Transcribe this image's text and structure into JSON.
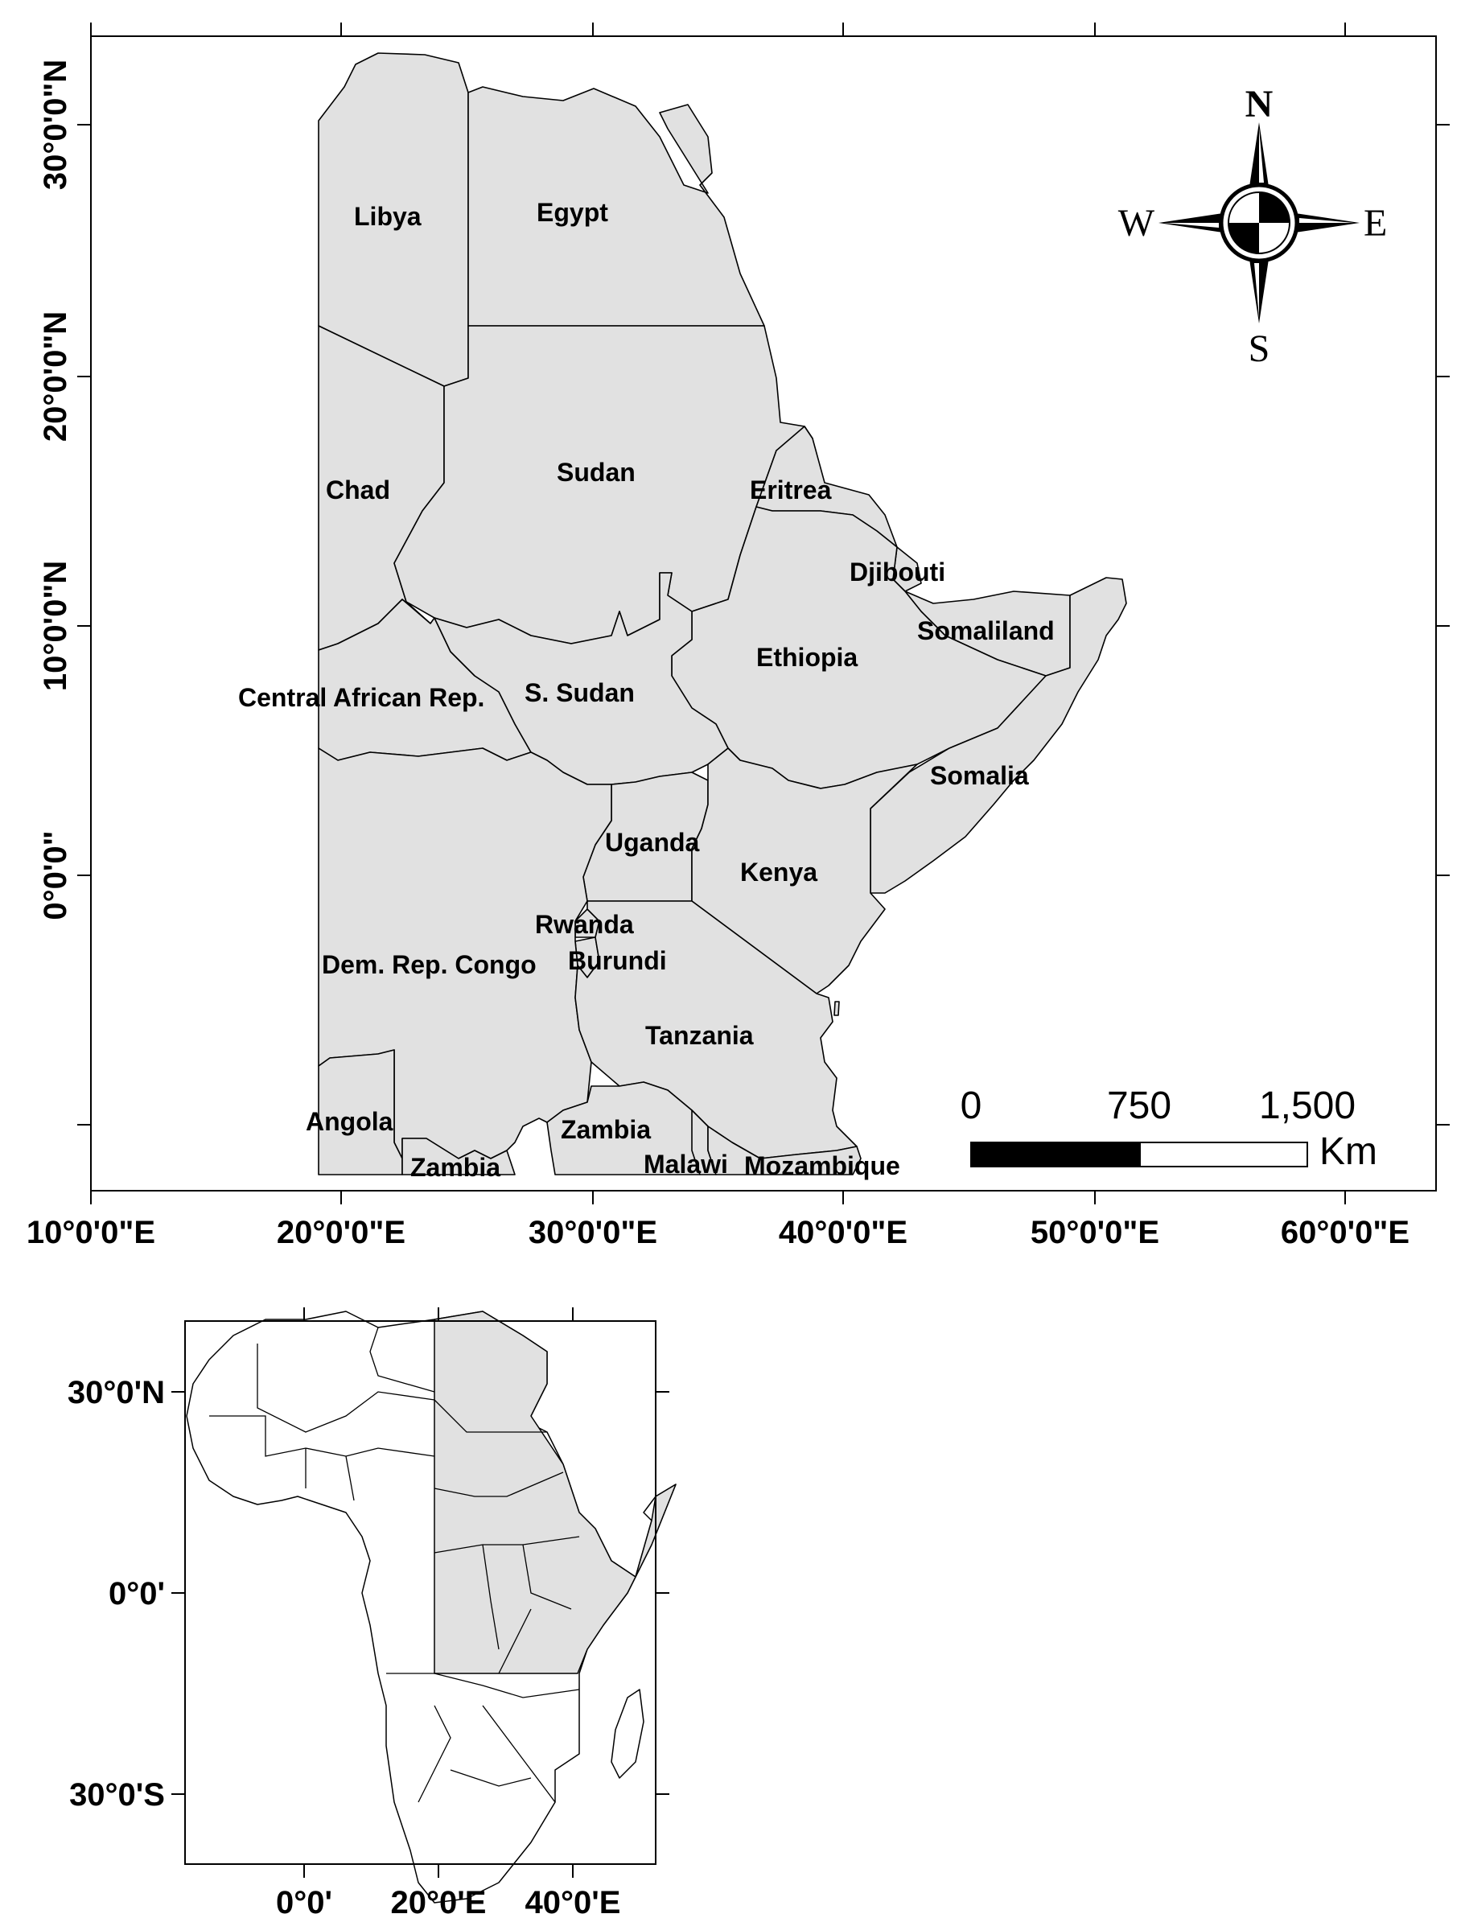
{
  "main_map": {
    "countries": [
      {
        "id": "libya",
        "label": "Libya"
      },
      {
        "id": "egypt",
        "label": "Egypt"
      },
      {
        "id": "chad",
        "label": "Chad"
      },
      {
        "id": "sudan",
        "label": "Sudan"
      },
      {
        "id": "eritrea",
        "label": "Eritrea"
      },
      {
        "id": "djibouti",
        "label": "Djibouti"
      },
      {
        "id": "somaliland",
        "label": "Somaliland"
      },
      {
        "id": "ethiopia",
        "label": "Ethiopia"
      },
      {
        "id": "central-african-rep",
        "label": "Central African Rep."
      },
      {
        "id": "s-sudan",
        "label": "S. Sudan"
      },
      {
        "id": "somalia",
        "label": "Somalia"
      },
      {
        "id": "uganda",
        "label": "Uganda"
      },
      {
        "id": "kenya",
        "label": "Kenya"
      },
      {
        "id": "rwanda",
        "label": "Rwanda"
      },
      {
        "id": "dem-rep-congo",
        "label": "Dem. Rep. Congo"
      },
      {
        "id": "burundi",
        "label": "Burundi"
      },
      {
        "id": "tanzania",
        "label": "Tanzania"
      },
      {
        "id": "angola",
        "label": "Angola"
      },
      {
        "id": "zambia-east",
        "label": "Zambia"
      },
      {
        "id": "zambia-west",
        "label": "Zambia"
      },
      {
        "id": "malawi",
        "label": "Malawi"
      },
      {
        "id": "mozambique",
        "label": "Mozambique"
      }
    ],
    "x_ticks": [
      "10°0'0\"E",
      "20°0'0\"E",
      "30°0'0\"E",
      "40°0'0\"E",
      "50°0'0\"E",
      "60°0'0\"E"
    ],
    "y_ticks": [
      "30°0'0\"N",
      "20°0'0\"N",
      "10°0'0\"N",
      "0°0'0\""
    ],
    "compass": {
      "north": "N",
      "south": "S",
      "east": "E",
      "west": "W"
    },
    "scale_bar": {
      "labels": [
        "0",
        "750",
        "1,500"
      ],
      "unit": "Km",
      "values_km": [
        0,
        750,
        1500
      ]
    }
  },
  "inset_map": {
    "x_ticks": [
      "0°0'",
      "20°0'E",
      "40°0'E"
    ],
    "y_ticks": [
      "30°0'N",
      "0°0'",
      "30°0'S"
    ]
  }
}
